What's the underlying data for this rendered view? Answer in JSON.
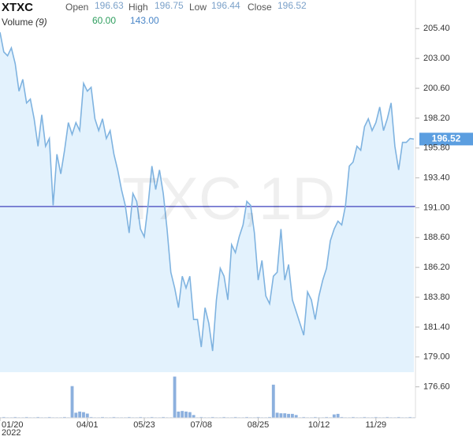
{
  "header": {
    "symbol": "XTXC",
    "open_label": "Open",
    "open": "196.63",
    "high_label": "High",
    "high": "196.75",
    "low_label": "Low",
    "low": "196.44",
    "close_label": "Close",
    "close": "196.52",
    "volume_label": "Volume",
    "volume_period": "(9)",
    "volume_value_1": "60.00",
    "volume_value_2": "143.00"
  },
  "chart_data": {
    "type": "line",
    "watermark": "TXC,1D",
    "color": "#7fb3e0",
    "fill": "#e3f2fd",
    "last_label": "196.52",
    "values": [
      205.11,
      203.53,
      203.22,
      203.85,
      202.58,
      200.37,
      201.32,
      199.42,
      199.73,
      198.15,
      195.94,
      198.47,
      195.94,
      196.57,
      191.19,
      195.3,
      193.72,
      195.62,
      197.84,
      196.89,
      197.84,
      197.2,
      201.0,
      200.37,
      200.68,
      198.15,
      197.2,
      198.15,
      196.57,
      197.2,
      195.3,
      194.04,
      192.46,
      191.19,
      188.97,
      192.14,
      191.51,
      189.29,
      188.66,
      191.19,
      194.35,
      192.46,
      194.04,
      192.14,
      189.29,
      185.81,
      184.54,
      182.96,
      185.49,
      184.54,
      185.49,
      182.01,
      182.01,
      179.8,
      182.96,
      181.7,
      179.48,
      183.59,
      186.13,
      185.49,
      183.59,
      188.03,
      187.39,
      188.66,
      189.61,
      191.51,
      191.19,
      188.97,
      185.18,
      186.76,
      183.91,
      183.28,
      185.49,
      185.81,
      189.29,
      185.18,
      186.44,
      183.59,
      182.65,
      181.7,
      180.75,
      184.23,
      183.59,
      182.01,
      183.91,
      185.18,
      186.13,
      188.34,
      189.29,
      189.92,
      189.61,
      191.19,
      194.35,
      194.67,
      195.94,
      195.62,
      197.52,
      198.15,
      197.2,
      197.84,
      199.1,
      197.2,
      198.15,
      199.42,
      195.94,
      194.04,
      196.25,
      196.25,
      196.57,
      196.52
    ],
    "hline": {
      "value": 191.1,
      "color": "#5b5fc7"
    },
    "volume": {
      "color": "#5b8fd0",
      "ylim": [
        0,
        150
      ],
      "values": [
        2,
        3,
        2,
        2,
        3,
        2,
        2,
        3,
        2,
        2,
        3,
        2,
        2,
        3,
        2,
        2,
        2,
        3,
        2,
        110,
        18,
        22,
        20,
        15,
        3,
        2,
        2,
        3,
        2,
        2,
        3,
        2,
        2,
        2,
        3,
        2,
        2,
        3,
        2,
        2,
        3,
        2,
        2,
        3,
        2,
        2,
        143,
        22,
        24,
        22,
        20,
        10,
        2,
        3,
        2,
        2,
        3,
        2,
        2,
        3,
        2,
        2,
        3,
        2,
        2,
        3,
        2,
        2,
        3,
        2,
        2,
        3,
        115,
        18,
        16,
        16,
        14,
        14,
        10,
        2,
        3,
        2,
        2,
        3,
        2,
        2,
        3,
        2,
        12,
        14,
        3,
        2,
        2,
        3,
        2,
        2,
        3,
        2,
        2,
        3,
        2,
        2,
        3,
        2,
        2,
        3,
        2,
        2,
        3,
        2
      ]
    },
    "xlim": [
      0,
      109
    ],
    "xticks": [
      {
        "value": 0,
        "label": "01/20"
      },
      {
        "value": 23,
        "label": "04/01"
      },
      {
        "value": 38,
        "label": "05/23"
      },
      {
        "value": 53,
        "label": "07/08"
      },
      {
        "value": 68,
        "label": "08/25"
      },
      {
        "value": 84,
        "label": "10/12"
      },
      {
        "value": 99,
        "label": "11/29"
      }
    ],
    "x_year_label": "2022",
    "ylim": [
      174.1,
      207.7
    ],
    "yticks": [
      {
        "value": 205.4,
        "label": "205.40"
      },
      {
        "value": 203.0,
        "label": "203.00"
      },
      {
        "value": 200.6,
        "label": "200.60"
      },
      {
        "value": 198.2,
        "label": "198.20"
      },
      {
        "value": 195.8,
        "label": "195.80"
      },
      {
        "value": 193.4,
        "label": "193.40"
      },
      {
        "value": 191.0,
        "label": "191.00"
      },
      {
        "value": 188.6,
        "label": "188.60"
      },
      {
        "value": 186.2,
        "label": "186.20"
      },
      {
        "value": 183.8,
        "label": "183.80"
      },
      {
        "value": 181.4,
        "label": "181.40"
      },
      {
        "value": 179.0,
        "label": "179.00"
      },
      {
        "value": 176.6,
        "label": "176.60"
      }
    ],
    "grid": false
  }
}
